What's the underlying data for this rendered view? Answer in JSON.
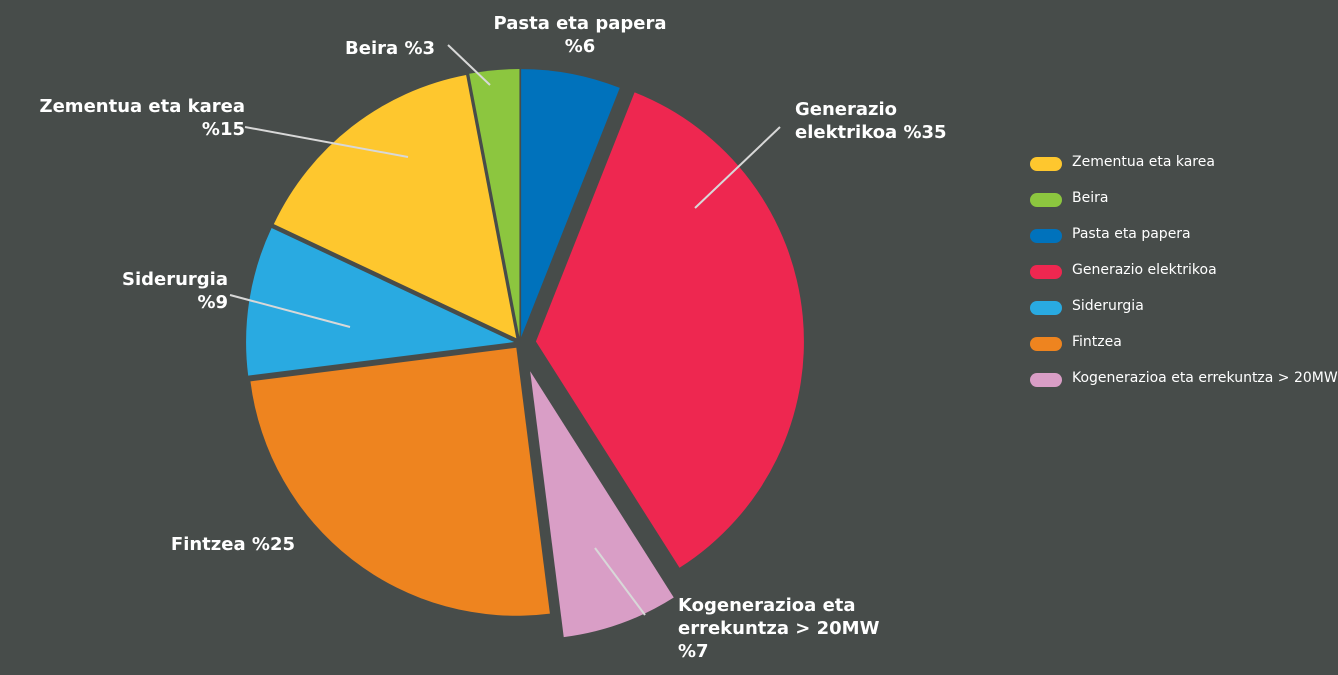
{
  "chart_data": {
    "type": "pie",
    "categories": [
      "Pasta eta papera",
      "Generazio elektrikoa",
      "Kogenerazioa eta errekuntza > 20MW",
      "Fintzea",
      "Siderurgia",
      "Zementua eta karea",
      "Beira"
    ],
    "values": [
      6,
      35,
      7,
      25,
      9,
      15,
      3
    ],
    "value_labels": [
      "%6",
      "%35",
      "%7",
      "%25",
      "%9",
      "%15",
      "%3"
    ],
    "colors": [
      "#0072bc",
      "#ee2750",
      "#d99ec6",
      "#ee841f",
      "#29aae1",
      "#fec72e",
      "#8cc63f"
    ],
    "legend": {
      "position": "right",
      "entries": [
        "Zementua eta karea",
        "Beira",
        "Pasta eta papera",
        "Generazio elektrikoa",
        "Siderurgia",
        "Fintzea",
        "Kogenerazioa eta errekuntza > 20MW"
      ]
    }
  }
}
